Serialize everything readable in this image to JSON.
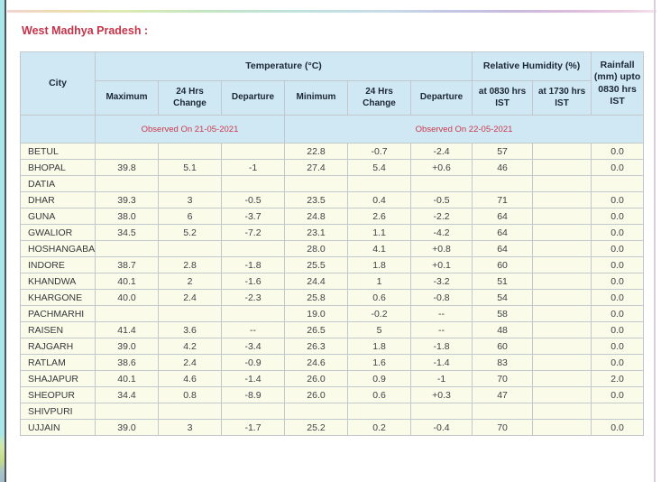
{
  "page": {
    "title": "West Madhya Pradesh :"
  },
  "colors": {
    "title_red": "#c5334a",
    "header_blue": "#cfe8f4",
    "row_ivory": "#fbfbe9",
    "border_gray": "#c1c9cd",
    "observed_red": "#cb3a4c",
    "left_stripe_cyan": "#a9e7ea",
    "frame_dark": "#4d5560"
  },
  "table": {
    "header": {
      "city": "City",
      "temperature_group": "Temperature (°C)",
      "humidity_group": "Relative Humidity (%)",
      "rainfall": "Rainfall (mm) upto 0830 hrs IST",
      "max": "Maximum",
      "max_change": "24 Hrs Change",
      "max_dep": "Departure",
      "min": "Minimum",
      "min_change": "24 Hrs Change",
      "min_dep": "Departure",
      "rh_0830": "at 0830 hrs IST",
      "rh_1730": "at 1730 hrs IST",
      "observed_left": "Observed On 21-05-2021",
      "observed_right": "Observed On 22-05-2021"
    },
    "rows": [
      {
        "city": "BETUL",
        "max": "",
        "max_change": "",
        "max_dep": "",
        "min": "22.8",
        "min_change": "-0.7",
        "min_dep": "-2.4",
        "rh_0830": "57",
        "rh_1730": "",
        "rainfall": "0.0"
      },
      {
        "city": "BHOPAL",
        "max": "39.8",
        "max_change": "5.1",
        "max_dep": "-1",
        "min": "27.4",
        "min_change": "5.4",
        "min_dep": "+0.6",
        "rh_0830": "46",
        "rh_1730": "",
        "rainfall": "0.0"
      },
      {
        "city": "DATIA",
        "max": "",
        "max_change": "",
        "max_dep": "",
        "min": "",
        "min_change": "",
        "min_dep": "",
        "rh_0830": "",
        "rh_1730": "",
        "rainfall": ""
      },
      {
        "city": "DHAR",
        "max": "39.3",
        "max_change": "3",
        "max_dep": "-0.5",
        "min": "23.5",
        "min_change": "0.4",
        "min_dep": "-0.5",
        "rh_0830": "71",
        "rh_1730": "",
        "rainfall": "0.0"
      },
      {
        "city": "GUNA",
        "max": "38.0",
        "max_change": "6",
        "max_dep": "-3.7",
        "min": "24.8",
        "min_change": "2.6",
        "min_dep": "-2.2",
        "rh_0830": "64",
        "rh_1730": "",
        "rainfall": "0.0"
      },
      {
        "city": "GWALIOR",
        "max": "34.5",
        "max_change": "5.2",
        "max_dep": "-7.2",
        "min": "23.1",
        "min_change": "1.1",
        "min_dep": "-4.2",
        "rh_0830": "64",
        "rh_1730": "",
        "rainfall": "0.0"
      },
      {
        "city": "HOSHANGABAD",
        "max": "",
        "max_change": "",
        "max_dep": "",
        "min": "28.0",
        "min_change": "4.1",
        "min_dep": "+0.8",
        "rh_0830": "64",
        "rh_1730": "",
        "rainfall": "0.0"
      },
      {
        "city": "INDORE",
        "max": "38.7",
        "max_change": "2.8",
        "max_dep": "-1.8",
        "min": "25.5",
        "min_change": "1.8",
        "min_dep": "+0.1",
        "rh_0830": "60",
        "rh_1730": "",
        "rainfall": "0.0"
      },
      {
        "city": "KHANDWA",
        "max": "40.1",
        "max_change": "2",
        "max_dep": "-1.6",
        "min": "24.4",
        "min_change": "1",
        "min_dep": "-3.2",
        "rh_0830": "51",
        "rh_1730": "",
        "rainfall": "0.0"
      },
      {
        "city": "KHARGONE",
        "max": "40.0",
        "max_change": "2.4",
        "max_dep": "-2.3",
        "min": "25.8",
        "min_change": "0.6",
        "min_dep": "-0.8",
        "rh_0830": "54",
        "rh_1730": "",
        "rainfall": "0.0"
      },
      {
        "city": "PACHMARHI",
        "max": "",
        "max_change": "",
        "max_dep": "",
        "min": "19.0",
        "min_change": "-0.2",
        "min_dep": "--",
        "rh_0830": "58",
        "rh_1730": "",
        "rainfall": "0.0"
      },
      {
        "city": "RAISEN",
        "max": "41.4",
        "max_change": "3.6",
        "max_dep": "--",
        "min": "26.5",
        "min_change": "5",
        "min_dep": "--",
        "rh_0830": "48",
        "rh_1730": "",
        "rainfall": "0.0"
      },
      {
        "city": "RAJGARH",
        "max": "39.0",
        "max_change": "4.2",
        "max_dep": "-3.4",
        "min": "26.3",
        "min_change": "1.8",
        "min_dep": "-1.8",
        "rh_0830": "60",
        "rh_1730": "",
        "rainfall": "0.0"
      },
      {
        "city": "RATLAM",
        "max": "38.6",
        "max_change": "2.4",
        "max_dep": "-0.9",
        "min": "24.6",
        "min_change": "1.6",
        "min_dep": "-1.4",
        "rh_0830": "83",
        "rh_1730": "",
        "rainfall": "0.0"
      },
      {
        "city": "SHAJAPUR",
        "max": "40.1",
        "max_change": "4.6",
        "max_dep": "-1.4",
        "min": "26.0",
        "min_change": "0.9",
        "min_dep": "-1",
        "rh_0830": "70",
        "rh_1730": "",
        "rainfall": "2.0"
      },
      {
        "city": "SHEOPUR",
        "max": "34.4",
        "max_change": "0.8",
        "max_dep": "-8.9",
        "min": "26.0",
        "min_change": "0.6",
        "min_dep": "+0.3",
        "rh_0830": "47",
        "rh_1730": "",
        "rainfall": "0.0"
      },
      {
        "city": "SHIVPURI",
        "max": "",
        "max_change": "",
        "max_dep": "",
        "min": "",
        "min_change": "",
        "min_dep": "",
        "rh_0830": "",
        "rh_1730": "",
        "rainfall": ""
      },
      {
        "city": "UJJAIN",
        "max": "39.0",
        "max_change": "3",
        "max_dep": "-1.7",
        "min": "25.2",
        "min_change": "0.2",
        "min_dep": "-0.4",
        "rh_0830": "70",
        "rh_1730": "",
        "rainfall": "0.0"
      }
    ]
  }
}
